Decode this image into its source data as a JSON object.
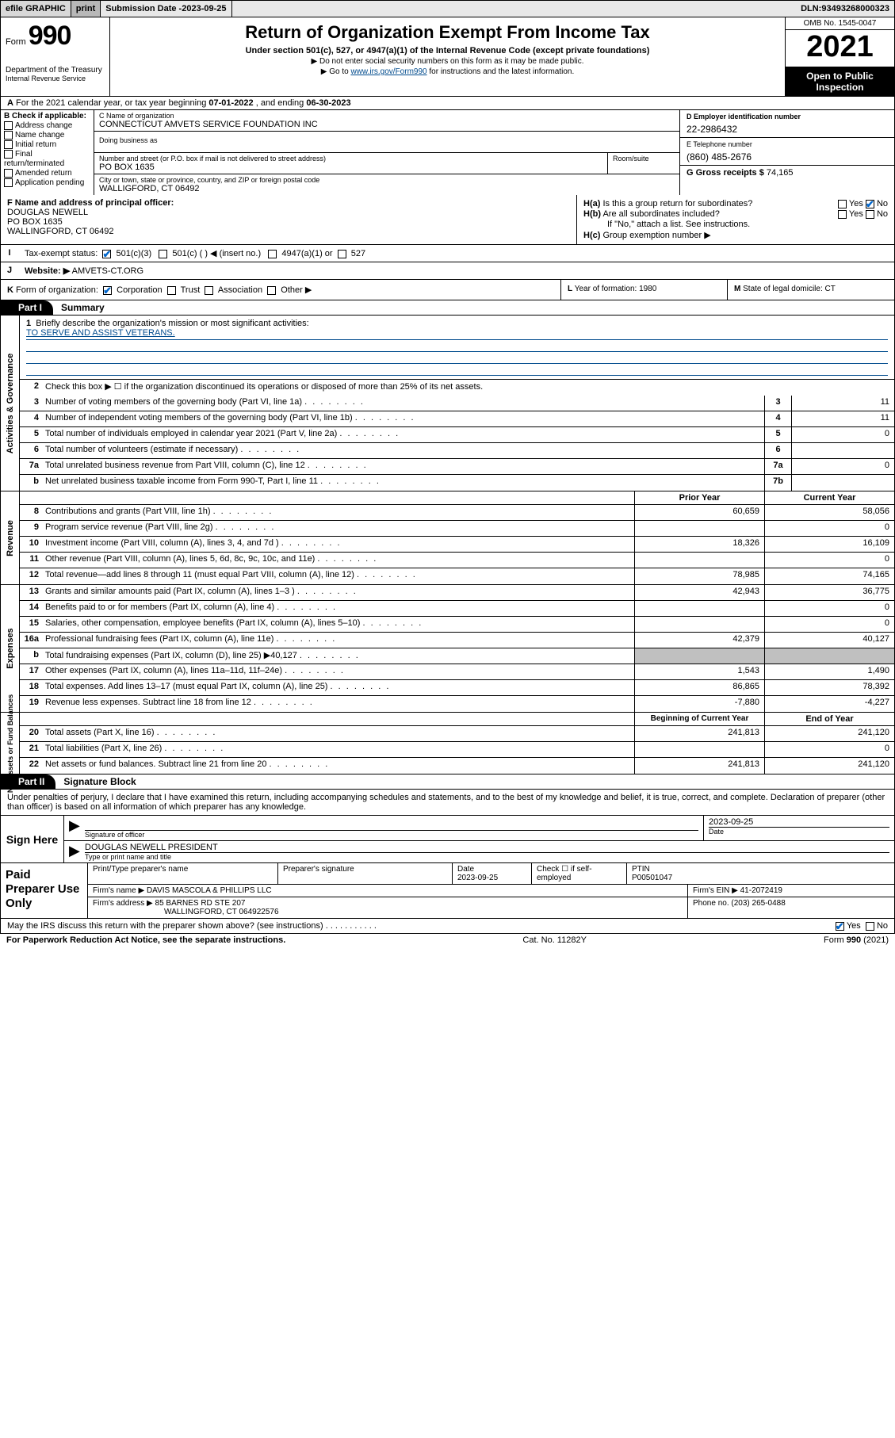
{
  "topbar": {
    "efile": "efile GRAPHIC",
    "print": "print",
    "submission_label": "Submission Date - ",
    "submission_date": "2023-09-25",
    "dln_label": "DLN: ",
    "dln": "93493268000323"
  },
  "header": {
    "form_label": "Form",
    "form_num": "990",
    "dept1": "Department of the Treasury",
    "dept2": "Internal Revenue Service",
    "title": "Return of Organization Exempt From Income Tax",
    "subtitle": "Under section 501(c), 527, or 4947(a)(1) of the Internal Revenue Code (except private foundations)",
    "instr1": "Do not enter social security numbers on this form as it may be made public.",
    "instr2_pre": "Go to ",
    "instr2_link": "www.irs.gov/Form990",
    "instr2_post": " for instructions and the latest information.",
    "omb": "OMB No. 1545-0047",
    "year": "2021",
    "open1": "Open to Public",
    "open2": "Inspection"
  },
  "rowA": {
    "label": "A",
    "text_pre": "For the 2021 calendar year, or tax year beginning ",
    "begin": "07-01-2022",
    "text_mid": " , and ending ",
    "end": "06-30-2023"
  },
  "colB": {
    "hdr": "B Check if applicable:",
    "opts": [
      "Address change",
      "Name change",
      "Initial return",
      "Final return/terminated",
      "Amended return",
      "Application pending"
    ]
  },
  "colC": {
    "name_lbl": "C Name of organization",
    "name": "CONNECTICUT AMVETS SERVICE FOUNDATION INC",
    "dba_lbl": "Doing business as",
    "addr_lbl": "Number and street (or P.O. box if mail is not delivered to street address)",
    "room_lbl": "Room/suite",
    "addr": "PO BOX 1635",
    "city_lbl": "City or town, state or province, country, and ZIP or foreign postal code",
    "city": "WALLIGFORD, CT  06492"
  },
  "colD": {
    "lbl": "D Employer identification number",
    "val": "22-2986432"
  },
  "colE": {
    "lbl": "E Telephone number",
    "val": "(860) 485-2676"
  },
  "colG": {
    "lbl": "G Gross receipts $",
    "val": "74,165"
  },
  "rowF": {
    "lbl": "F Name and address of principal officer:",
    "name": "DOUGLAS NEWELL",
    "addr1": "PO BOX 1635",
    "addr2": "WALLINGFORD, CT  06492"
  },
  "rowH": {
    "a_lbl": "H(a)",
    "a_text": "Is this a group return for subordinates?",
    "b_lbl": "H(b)",
    "b_text": "Are all subordinates included?",
    "b_note": "If \"No,\" attach a list. See instructions.",
    "c_lbl": "H(c)",
    "c_text": "Group exemption number ▶",
    "yes": "Yes",
    "no": "No"
  },
  "rowI": {
    "lbl": "I",
    "text": "Tax-exempt status:",
    "o1": "501(c)(3)",
    "o2": "501(c) (   ) ◀ (insert no.)",
    "o3": "4947(a)(1) or",
    "o4": "527"
  },
  "rowJ": {
    "lbl": "J",
    "text": "Website: ▶",
    "val": "AMVETS-CT.ORG"
  },
  "rowK": {
    "lbl": "K",
    "text": "Form of organization:",
    "opts": [
      "Corporation",
      "Trust",
      "Association",
      "Other ▶"
    ]
  },
  "rowL": {
    "lbl": "L",
    "text": "Year of formation: ",
    "val": "1980"
  },
  "rowM": {
    "lbl": "M",
    "text": "State of legal domicile: ",
    "val": "CT"
  },
  "part1": {
    "tab": "Part I",
    "title": "Summary"
  },
  "summary": {
    "s1_lbl": "1",
    "s1_text": "Briefly describe the organization's mission or most significant activities:",
    "s1_val": "TO SERVE AND ASSIST VETERANS.",
    "s2_lbl": "2",
    "s2_text": "Check this box ▶ ☐ if the organization discontinued its operations or disposed of more than 25% of its net assets.",
    "rows_ag": [
      {
        "n": "3",
        "t": "Number of voting members of the governing body (Part VI, line 1a)",
        "box": "3",
        "v": "11"
      },
      {
        "n": "4",
        "t": "Number of independent voting members of the governing body (Part VI, line 1b)",
        "box": "4",
        "v": "11"
      },
      {
        "n": "5",
        "t": "Total number of individuals employed in calendar year 2021 (Part V, line 2a)",
        "box": "5",
        "v": "0"
      },
      {
        "n": "6",
        "t": "Total number of volunteers (estimate if necessary)",
        "box": "6",
        "v": ""
      },
      {
        "n": "7a",
        "t": "Total unrelated business revenue from Part VIII, column (C), line 12",
        "box": "7a",
        "v": "0"
      },
      {
        "n": "b",
        "t": "Net unrelated business taxable income from Form 990-T, Part I, line 11",
        "box": "7b",
        "v": ""
      }
    ],
    "col_prior": "Prior Year",
    "col_curr": "Current Year",
    "rev": [
      {
        "n": "8",
        "t": "Contributions and grants (Part VIII, line 1h)",
        "p": "60,659",
        "c": "58,056"
      },
      {
        "n": "9",
        "t": "Program service revenue (Part VIII, line 2g)",
        "p": "",
        "c": "0"
      },
      {
        "n": "10",
        "t": "Investment income (Part VIII, column (A), lines 3, 4, and 7d )",
        "p": "18,326",
        "c": "16,109"
      },
      {
        "n": "11",
        "t": "Other revenue (Part VIII, column (A), lines 5, 6d, 8c, 9c, 10c, and 11e)",
        "p": "",
        "c": "0"
      },
      {
        "n": "12",
        "t": "Total revenue—add lines 8 through 11 (must equal Part VIII, column (A), line 12)",
        "p": "78,985",
        "c": "74,165"
      }
    ],
    "exp": [
      {
        "n": "13",
        "t": "Grants and similar amounts paid (Part IX, column (A), lines 1–3 )",
        "p": "42,943",
        "c": "36,775"
      },
      {
        "n": "14",
        "t": "Benefits paid to or for members (Part IX, column (A), line 4)",
        "p": "",
        "c": "0"
      },
      {
        "n": "15",
        "t": "Salaries, other compensation, employee benefits (Part IX, column (A), lines 5–10)",
        "p": "",
        "c": "0"
      },
      {
        "n": "16a",
        "t": "Professional fundraising fees (Part IX, column (A), line 11e)",
        "p": "42,379",
        "c": "40,127"
      },
      {
        "n": "b",
        "t": "Total fundraising expenses (Part IX, column (D), line 25) ▶40,127",
        "p": "SHADE",
        "c": "SHADE"
      },
      {
        "n": "17",
        "t": "Other expenses (Part IX, column (A), lines 11a–11d, 11f–24e)",
        "p": "1,543",
        "c": "1,490"
      },
      {
        "n": "18",
        "t": "Total expenses. Add lines 13–17 (must equal Part IX, column (A), line 25)",
        "p": "86,865",
        "c": "78,392"
      },
      {
        "n": "19",
        "t": "Revenue less expenses. Subtract line 18 from line 12",
        "p": "-7,880",
        "c": "-4,227"
      }
    ],
    "col_begin": "Beginning of Current Year",
    "col_end": "End of Year",
    "net": [
      {
        "n": "20",
        "t": "Total assets (Part X, line 16)",
        "p": "241,813",
        "c": "241,120"
      },
      {
        "n": "21",
        "t": "Total liabilities (Part X, line 26)",
        "p": "",
        "c": "0"
      },
      {
        "n": "22",
        "t": "Net assets or fund balances. Subtract line 21 from line 20",
        "p": "241,813",
        "c": "241,120"
      }
    ],
    "side_ag": "Activities & Governance",
    "side_rev": "Revenue",
    "side_exp": "Expenses",
    "side_net": "Net Assets or Fund Balances"
  },
  "part2": {
    "tab": "Part II",
    "title": "Signature Block"
  },
  "sig": {
    "intro": "Under penalties of perjury, I declare that I have examined this return, including accompanying schedules and statements, and to the best of my knowledge and belief, it is true, correct, and complete. Declaration of preparer (other than officer) is based on all information of which preparer has any knowledge.",
    "sign_here": "Sign Here",
    "officer_sig_lbl": "Signature of officer",
    "date_lbl": "Date",
    "date_val": "2023-09-25",
    "officer_name": "DOUGLAS NEWELL  PRESIDENT",
    "officer_name_lbl": "Type or print name and title"
  },
  "paid": {
    "hdr": "Paid Preparer Use Only",
    "c1": "Print/Type preparer's name",
    "c2": "Preparer's signature",
    "c3": "Date",
    "c3v": "2023-09-25",
    "c4": "Check ☐ if self-employed",
    "c5": "PTIN",
    "c5v": "P00501047",
    "firm_name_lbl": "Firm's name   ▶",
    "firm_name": "DAVIS MASCOLA & PHILLIPS LLC",
    "firm_ein_lbl": "Firm's EIN ▶",
    "firm_ein": "41-2072419",
    "firm_addr_lbl": "Firm's address ▶",
    "firm_addr1": "85 BARNES RD STE 207",
    "firm_addr2": "WALLINGFORD, CT  064922576",
    "phone_lbl": "Phone no.",
    "phone": "(203) 265-0488"
  },
  "discuss": {
    "text": "May the IRS discuss this return with the preparer shown above? (see instructions)",
    "yes": "Yes",
    "no": "No"
  },
  "footer": {
    "left": "For Paperwork Reduction Act Notice, see the separate instructions.",
    "mid": "Cat. No. 11282Y",
    "right_pre": "Form ",
    "right_form": "990",
    "right_post": " (2021)"
  }
}
